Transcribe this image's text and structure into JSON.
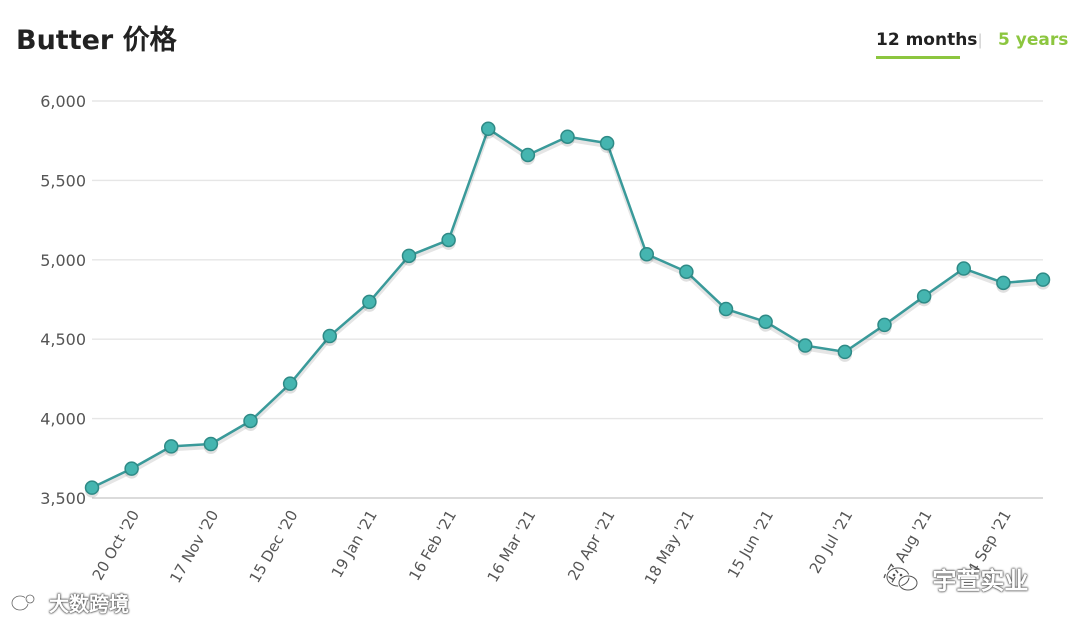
{
  "header": {
    "title": "Butter 价格"
  },
  "range_tabs": [
    {
      "label": "12 months",
      "active": true
    },
    {
      "label": "5 years",
      "active": false
    }
  ],
  "tab_separator": "|",
  "watermarks": {
    "left": "大数跨境",
    "right": "宇萱实业",
    "left_icon": "chat-bubble-icon",
    "right_icon": "wechat-icon"
  },
  "colors": {
    "series_line": "#3a9a9a",
    "marker_fill": "#45b5b0",
    "marker_stroke": "#2e8a86",
    "accent": "#8cc63f",
    "grid": "#e6e6e6"
  },
  "chart_data": {
    "type": "line",
    "ylim": [
      3500,
      6000
    ],
    "yticks": [
      "6,000",
      "5,500",
      "5,000",
      "4,500",
      "4,000",
      "3,500"
    ],
    "ytick_values": [
      6000,
      5500,
      5000,
      4500,
      4000,
      3500
    ],
    "x_tick_labels": [
      "20 Oct '20",
      "17 Nov '20",
      "15 Dec '20",
      "19 Jan '21",
      "16 Feb '21",
      "16 Mar '21",
      "20 Apr '21",
      "18 May '21",
      "15 Jun '21",
      "20 Jul '21",
      "17 Aug '21",
      "14 Sep '21"
    ],
    "x_tick_indices": [
      1,
      3,
      5,
      7,
      9,
      11,
      13,
      15,
      17,
      19,
      21,
      23
    ],
    "series": [
      {
        "values": [
          3565,
          3685,
          3825,
          3840,
          3985,
          4220,
          4520,
          4735,
          5025,
          5125,
          5825,
          5660,
          5775,
          5735,
          5035,
          4925,
          4690,
          4610,
          4460,
          4420,
          4590,
          4770,
          4945,
          4855,
          4875
        ]
      }
    ],
    "grid": true,
    "legend": "none"
  }
}
